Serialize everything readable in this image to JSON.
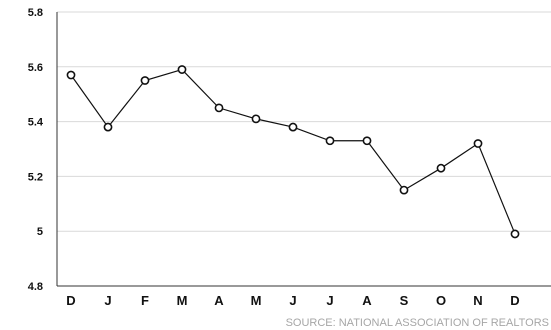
{
  "chart_data": {
    "type": "line",
    "categories": [
      "D",
      "J",
      "F",
      "M",
      "A",
      "M",
      "J",
      "J",
      "A",
      "S",
      "O",
      "N",
      "D"
    ],
    "values": [
      5.57,
      5.38,
      5.55,
      5.59,
      5.45,
      5.41,
      5.38,
      5.33,
      5.33,
      5.15,
      5.23,
      5.32,
      4.99
    ],
    "ylim": [
      4.8,
      5.8
    ],
    "yticks": [
      4.8,
      5,
      5.2,
      5.4,
      5.6,
      5.8
    ],
    "ytick_labels": [
      "4.8",
      "5",
      "5.2",
      "5.4",
      "5.6",
      "5.8"
    ],
    "grid": true,
    "source": "SOURCE: NATIONAL ASSOCIATION OF REALTORS",
    "colors": {
      "line": "#111111",
      "marker_fill": "#ffffff",
      "grid": "#d9d9d9",
      "axis": "#333333",
      "source": "#a6a6a6"
    }
  }
}
